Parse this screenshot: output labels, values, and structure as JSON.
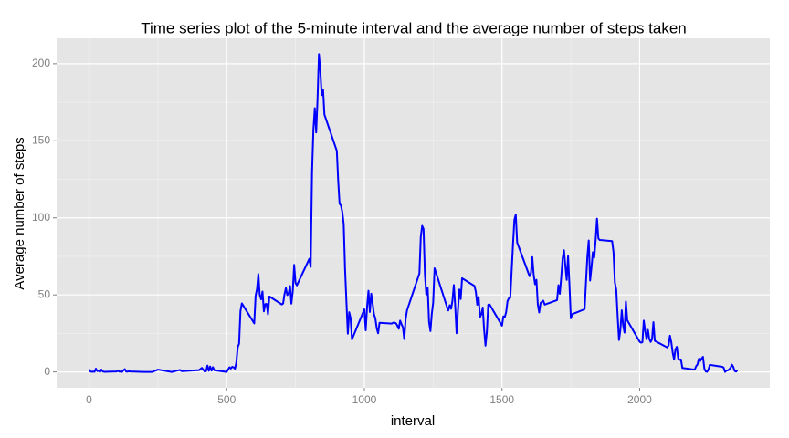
{
  "chart_data": {
    "type": "line",
    "title": "Time series plot of the 5-minute interval and the average number of steps taken",
    "xlabel": "interval",
    "ylabel": "Average number of steps",
    "color": "#0000ff",
    "grid": true,
    "xlim": [
      -117.75,
      2472.75
    ],
    "ylim": [
      -10.3,
      216.5
    ],
    "xticks": [
      0,
      500,
      1000,
      1500,
      2000
    ],
    "yticks": [
      0,
      50,
      100,
      150,
      200
    ],
    "x": [
      0,
      5,
      10,
      15,
      20,
      25,
      30,
      35,
      40,
      45,
      50,
      55,
      100,
      105,
      110,
      115,
      120,
      125,
      130,
      135,
      140,
      145,
      150,
      200,
      230,
      250,
      300,
      330,
      335,
      340,
      400,
      410,
      420,
      425,
      430,
      435,
      440,
      445,
      450,
      455,
      500,
      505,
      510,
      515,
      520,
      525,
      530,
      535,
      540,
      545,
      550,
      555,
      600,
      605,
      610,
      615,
      620,
      625,
      630,
      635,
      640,
      645,
      650,
      655,
      700,
      705,
      710,
      715,
      720,
      725,
      730,
      735,
      740,
      745,
      750,
      755,
      800,
      805,
      810,
      815,
      820,
      825,
      830,
      835,
      840,
      845,
      850,
      855,
      900,
      905,
      910,
      915,
      920,
      925,
      930,
      935,
      940,
      945,
      950,
      955,
      1000,
      1005,
      1010,
      1015,
      1020,
      1025,
      1030,
      1035,
      1040,
      1045,
      1050,
      1055,
      1100,
      1105,
      1110,
      1115,
      1120,
      1125,
      1130,
      1135,
      1140,
      1145,
      1150,
      1155,
      1200,
      1205,
      1210,
      1215,
      1220,
      1225,
      1230,
      1235,
      1240,
      1245,
      1250,
      1255,
      1300,
      1305,
      1310,
      1315,
      1320,
      1325,
      1330,
      1335,
      1340,
      1345,
      1350,
      1355,
      1400,
      1405,
      1410,
      1415,
      1420,
      1425,
      1430,
      1435,
      1440,
      1445,
      1450,
      1455,
      1500,
      1505,
      1510,
      1515,
      1520,
      1525,
      1530,
      1535,
      1540,
      1545,
      1550,
      1555,
      1600,
      1605,
      1610,
      1615,
      1620,
      1625,
      1630,
      1635,
      1640,
      1645,
      1650,
      1655,
      1700,
      1705,
      1710,
      1715,
      1720,
      1725,
      1730,
      1735,
      1740,
      1745,
      1750,
      1755,
      1800,
      1805,
      1810,
      1815,
      1820,
      1825,
      1830,
      1835,
      1840,
      1845,
      1850,
      1855,
      1900,
      1905,
      1910,
      1915,
      1920,
      1925,
      1930,
      1935,
      1940,
      1945,
      1950,
      1955,
      2000,
      2005,
      2010,
      2015,
      2020,
      2025,
      2030,
      2035,
      2040,
      2045,
      2050,
      2055,
      2100,
      2105,
      2110,
      2115,
      2120,
      2125,
      2130,
      2135,
      2140,
      2145,
      2150,
      2155,
      2200,
      2205,
      2210,
      2215,
      2220,
      2225,
      2230,
      2235,
      2240,
      2245,
      2250,
      2255,
      2300,
      2305,
      2310,
      2315,
      2320,
      2325,
      2330,
      2335,
      2340,
      2345,
      2350,
      2355
    ],
    "values": [
      1.7,
      0.3,
      0.1,
      0.2,
      0.1,
      2.1,
      0.5,
      0.9,
      0,
      1.5,
      0.3,
      0.1,
      0.3,
      0.7,
      0.2,
      0.3,
      0,
      1.1,
      1.8,
      0.2,
      0.2,
      0.4,
      0.3,
      0,
      0,
      1.5,
      0,
      1.3,
      0.6,
      0.5,
      1.2,
      2.6,
      0.3,
      0.4,
      4.1,
      0.7,
      3.5,
      0.8,
      3.1,
      1.1,
      0,
      1.6,
      3,
      2.2,
      3.3,
      3,
      2.1,
      6.1,
      16,
      18.3,
      39.5,
      44.5,
      31.5,
      49.3,
      53.8,
      63.5,
      50,
      47.1,
      52.2,
      39.3,
      44,
      44.2,
      37.4,
      49,
      43.8,
      44.4,
      50.5,
      54.5,
      49.9,
      51,
      55.7,
      44.3,
      52.3,
      69.5,
      57.8,
      56.2,
      73.4,
      68.2,
      129.4,
      157.5,
      171.2,
      155.4,
      177.3,
      206.2,
      195.9,
      179.6,
      183.4,
      167,
      143.5,
      124,
      109.1,
      108.1,
      103.7,
      95.9,
      66.2,
      45.2,
      24.8,
      38.8,
      35,
      21.1,
      40.6,
      27,
      42.4,
      52.7,
      38.9,
      50.8,
      44.3,
      37.4,
      34.7,
      28.3,
      25.1,
      31.9,
      31.4,
      32,
      32,
      31.5,
      30,
      28,
      33.3,
      31,
      29,
      21.3,
      34.3,
      40,
      63.9,
      87.7,
      94.8,
      92.8,
      63.4,
      50.2,
      54.5,
      32.4,
      26.5,
      37.7,
      45.1,
      67.3,
      42.3,
      39.9,
      43.3,
      41,
      46.2,
      56.4,
      42.8,
      25.1,
      40,
      53.5,
      47.3,
      60.8,
      55.8,
      51.9,
      43.6,
      48.7,
      35.5,
      37.5,
      41.8,
      27.5,
      17.1,
      26.1,
      43.6,
      43.8,
      30,
      36.1,
      35.5,
      38.8,
      45.96,
      47.8,
      48.1,
      65.3,
      82.9,
      98.7,
      102.1,
      84,
      62.1,
      64.1,
      74.5,
      63.2,
      56.9,
      59.8,
      43.9,
      38.6,
      44.7,
      45.5,
      46.2,
      43.7,
      46.6,
      56.3,
      50.7,
      61.2,
      73.4,
      79,
      68.9,
      59.7,
      75.1,
      56.5,
      34.8,
      37.5,
      40.7,
      58,
      74.7,
      85.3,
      59.3,
      67.8,
      77.7,
      74.2,
      85.3,
      99.5,
      86.6,
      85.6,
      84.9,
      77.8,
      58,
      53.4,
      36.3,
      20.7,
      27.4,
      40,
      30.2,
      25.5,
      45.7,
      33.5,
      19.6,
      19,
      19.3,
      33.3,
      26.8,
      21.2,
      27.3,
      21.3,
      19.5,
      21.3,
      32.3,
      20.2,
      15.9,
      17.2,
      23.5,
      19.2,
      12.5,
      8,
      14.7,
      16.3,
      8.7,
      7.8,
      8.1,
      2.6,
      1.5,
      3.7,
      4.8,
      8.5,
      7.1,
      8.7,
      9.8,
      2.2,
      0.3,
      0.1,
      1.6,
      4.6,
      3.3,
      2.8,
      0,
      0.8,
      1,
      1.6,
      2.6,
      4.7,
      3.3,
      0.6,
      0.2,
      1.1
    ]
  }
}
